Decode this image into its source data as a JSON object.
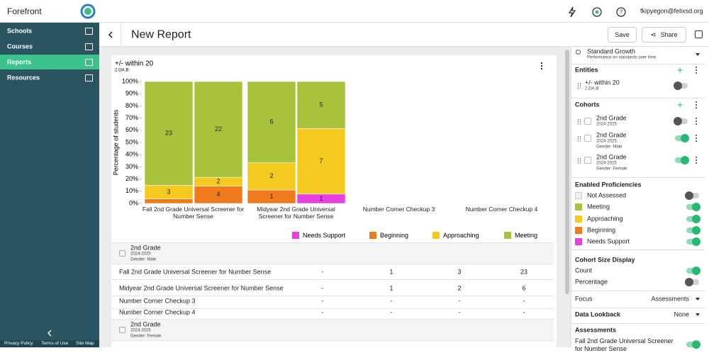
{
  "top_bar": {
    "brand": "Forefront",
    "user": "fkipyegon@felixsd.org"
  },
  "sidebar": {
    "nav": [
      "Schools",
      "Courses",
      "Reports",
      "Resources"
    ],
    "active": 2,
    "footer": [
      "Privacy Policy",
      "Terms of Use",
      "Site Map"
    ]
  },
  "header": {
    "title": "New Report",
    "actions": [
      "Save",
      "Share"
    ]
  },
  "chart_data": {
    "type": "bar",
    "stacked": true,
    "title": "+/- within 20",
    "subtitle": "2.OA.B",
    "y_label": "Percentage of students",
    "categories": [
      "Fall 2nd Grade Universal Screener for Number Sense",
      "Midyear 2nd Grade Universal Screener for Number Sense",
      "Number Corner Checkup 3",
      "Number Corner Checkup 4"
    ],
    "series": [
      {
        "name": "Needs Support",
        "color": "#e640e0",
        "values": [
          [
            0,
            0
          ],
          [
            0,
            7.7
          ],
          null,
          null
        ],
        "counts": [
          [
            null,
            null
          ],
          [
            null,
            1
          ],
          null,
          null
        ]
      },
      {
        "name": "Beginning",
        "color": "#f07a1c",
        "values": [
          [
            3.7,
            14.3
          ],
          [
            11.1,
            0
          ],
          null,
          null
        ],
        "counts": [
          [
            null,
            4
          ],
          [
            1,
            null
          ],
          null,
          null
        ]
      },
      {
        "name": "Approaching",
        "color": "#f4c920",
        "values": [
          [
            11.1,
            7.1
          ],
          [
            22.2,
            53.8
          ],
          null,
          null
        ],
        "counts": [
          [
            3,
            2
          ],
          [
            2,
            7
          ],
          null,
          null
        ]
      },
      {
        "name": "Meeting",
        "color": "#a8c23b",
        "values": [
          [
            85.2,
            78.6
          ],
          [
            66.7,
            38.5
          ],
          null,
          null
        ],
        "counts": [
          [
            23,
            22
          ],
          [
            6,
            5
          ],
          null,
          null
        ]
      }
    ],
    "ylim": [
      0,
      100
    ],
    "yticks": [
      {
        "value": 0,
        "label": "0%"
      },
      {
        "value": 10,
        "label": "10%"
      },
      {
        "value": 20,
        "label": "20%"
      },
      {
        "value": 30,
        "label": "30%"
      },
      {
        "value": 40,
        "label": "40%"
      },
      {
        "value": 50,
        "label": "50%"
      },
      {
        "value": 60,
        "label": "60%"
      },
      {
        "value": 70,
        "label": "70%"
      },
      {
        "value": 80,
        "label": "80%"
      },
      {
        "value": 90,
        "label": "90%"
      },
      {
        "value": 100,
        "label": "100%"
      }
    ]
  },
  "table": {
    "groups": [
      {
        "cohort": [
          "2nd Grade",
          "2024-2025",
          "Gender: Male"
        ],
        "rows": [
          [
            "Fall 2nd Grade Universal Screener for Number Sense",
            "-",
            "1",
            "3",
            "23"
          ],
          [
            "Midyear 2nd Grade Universal Screener for Number Sense",
            "-",
            "1",
            "2",
            "6"
          ],
          [
            "Number Corner Checkup 3",
            "-",
            "-",
            "-",
            "-"
          ],
          [
            "Number Corner Checkup 4",
            "-",
            "-",
            "-",
            "-"
          ]
        ]
      },
      {
        "cohort": [
          "2nd Grade",
          "2024-2025",
          "Gender: Female"
        ],
        "rows": []
      }
    ]
  },
  "panel": {
    "view": {
      "title": "Standard Growth",
      "description": "Performance on standards over time"
    },
    "entities": {
      "heading": "Entities",
      "items": [
        [
          "+/- within 20",
          "2.OA.B"
        ]
      ]
    },
    "cohorts": {
      "heading": "Cohorts",
      "items": [
        [
          "2nd Grade",
          "2024-2025"
        ],
        [
          "2nd Grade",
          "2024-2025",
          "Gender: Male"
        ],
        [
          "2nd Grade",
          "2024-2025",
          "Gender: Female"
        ]
      ]
    },
    "proficiencies": {
      "heading": "Enabled Proficiencies",
      "items": [
        "Not Assessed",
        "Meeting",
        "Approaching",
        "Beginning",
        "Needs Support"
      ]
    },
    "size_display": {
      "heading": "Cohort Size Display",
      "items": [
        "Count",
        "Percentage"
      ]
    },
    "focus": {
      "label": "Focus",
      "value": "Assessments"
    },
    "lookback": {
      "label": "Data Lookback",
      "value": "None"
    },
    "assessments": {
      "heading": "Assessments",
      "items": [
        "Fall 2nd Grade Universal Screener for Number Sense"
      ]
    }
  }
}
